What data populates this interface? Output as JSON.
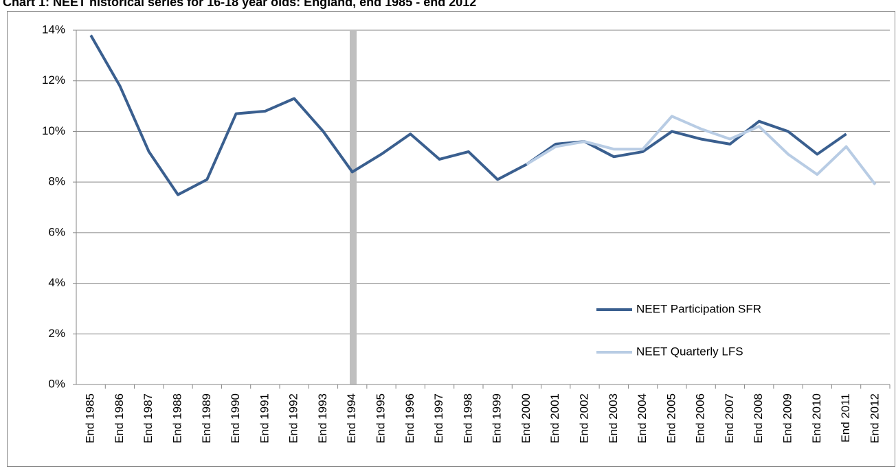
{
  "chart_data": {
    "type": "line",
    "title": "Chart 1: NEET historical series for 16-18 year olds: England, end 1985 - end 2012",
    "categories": [
      "End 1985",
      "End 1986",
      "End 1987",
      "End 1988",
      "End 1989",
      "End 1990",
      "End 1991",
      "End 1992",
      "End 1993",
      "End 1994",
      "End 1995",
      "End 1996",
      "End 1997",
      "End 1998",
      "End 1999",
      "End 2000",
      "End 2001",
      "End 2002",
      "End 2003",
      "End 2004",
      "End 2005",
      "End 2006",
      "End 2007",
      "End 2008",
      "End 2009",
      "End 2010",
      "End 2011",
      "End 2012"
    ],
    "series": [
      {
        "name": "NEET Participation SFR",
        "color": "#3a5f8f",
        "values": [
          13.8,
          11.8,
          9.2,
          7.5,
          8.1,
          10.7,
          10.8,
          11.3,
          10.0,
          8.4,
          9.1,
          9.9,
          8.9,
          9.2,
          8.1,
          8.7,
          9.5,
          9.6,
          9.0,
          9.2,
          10.0,
          9.7,
          9.5,
          10.4,
          10.0,
          9.1,
          9.9,
          null
        ]
      },
      {
        "name": "NEET Quarterly LFS",
        "color": "#b8cce4",
        "values": [
          null,
          null,
          null,
          null,
          null,
          null,
          null,
          null,
          null,
          null,
          null,
          null,
          null,
          null,
          null,
          8.7,
          9.4,
          9.6,
          9.3,
          9.3,
          10.6,
          10.1,
          9.7,
          10.2,
          9.1,
          8.3,
          9.4,
          7.9
        ]
      }
    ],
    "ylim": [
      0,
      14
    ],
    "yticks": [
      {
        "value": 0,
        "label": "0%"
      },
      {
        "value": 2,
        "label": "2%"
      },
      {
        "value": 4,
        "label": "4%"
      },
      {
        "value": 6,
        "label": "6%"
      },
      {
        "value": 8,
        "label": "8%"
      },
      {
        "value": 10,
        "label": "10%"
      },
      {
        "value": 12,
        "label": "12%"
      },
      {
        "value": 14,
        "label": "14%"
      }
    ],
    "grid": true
  }
}
